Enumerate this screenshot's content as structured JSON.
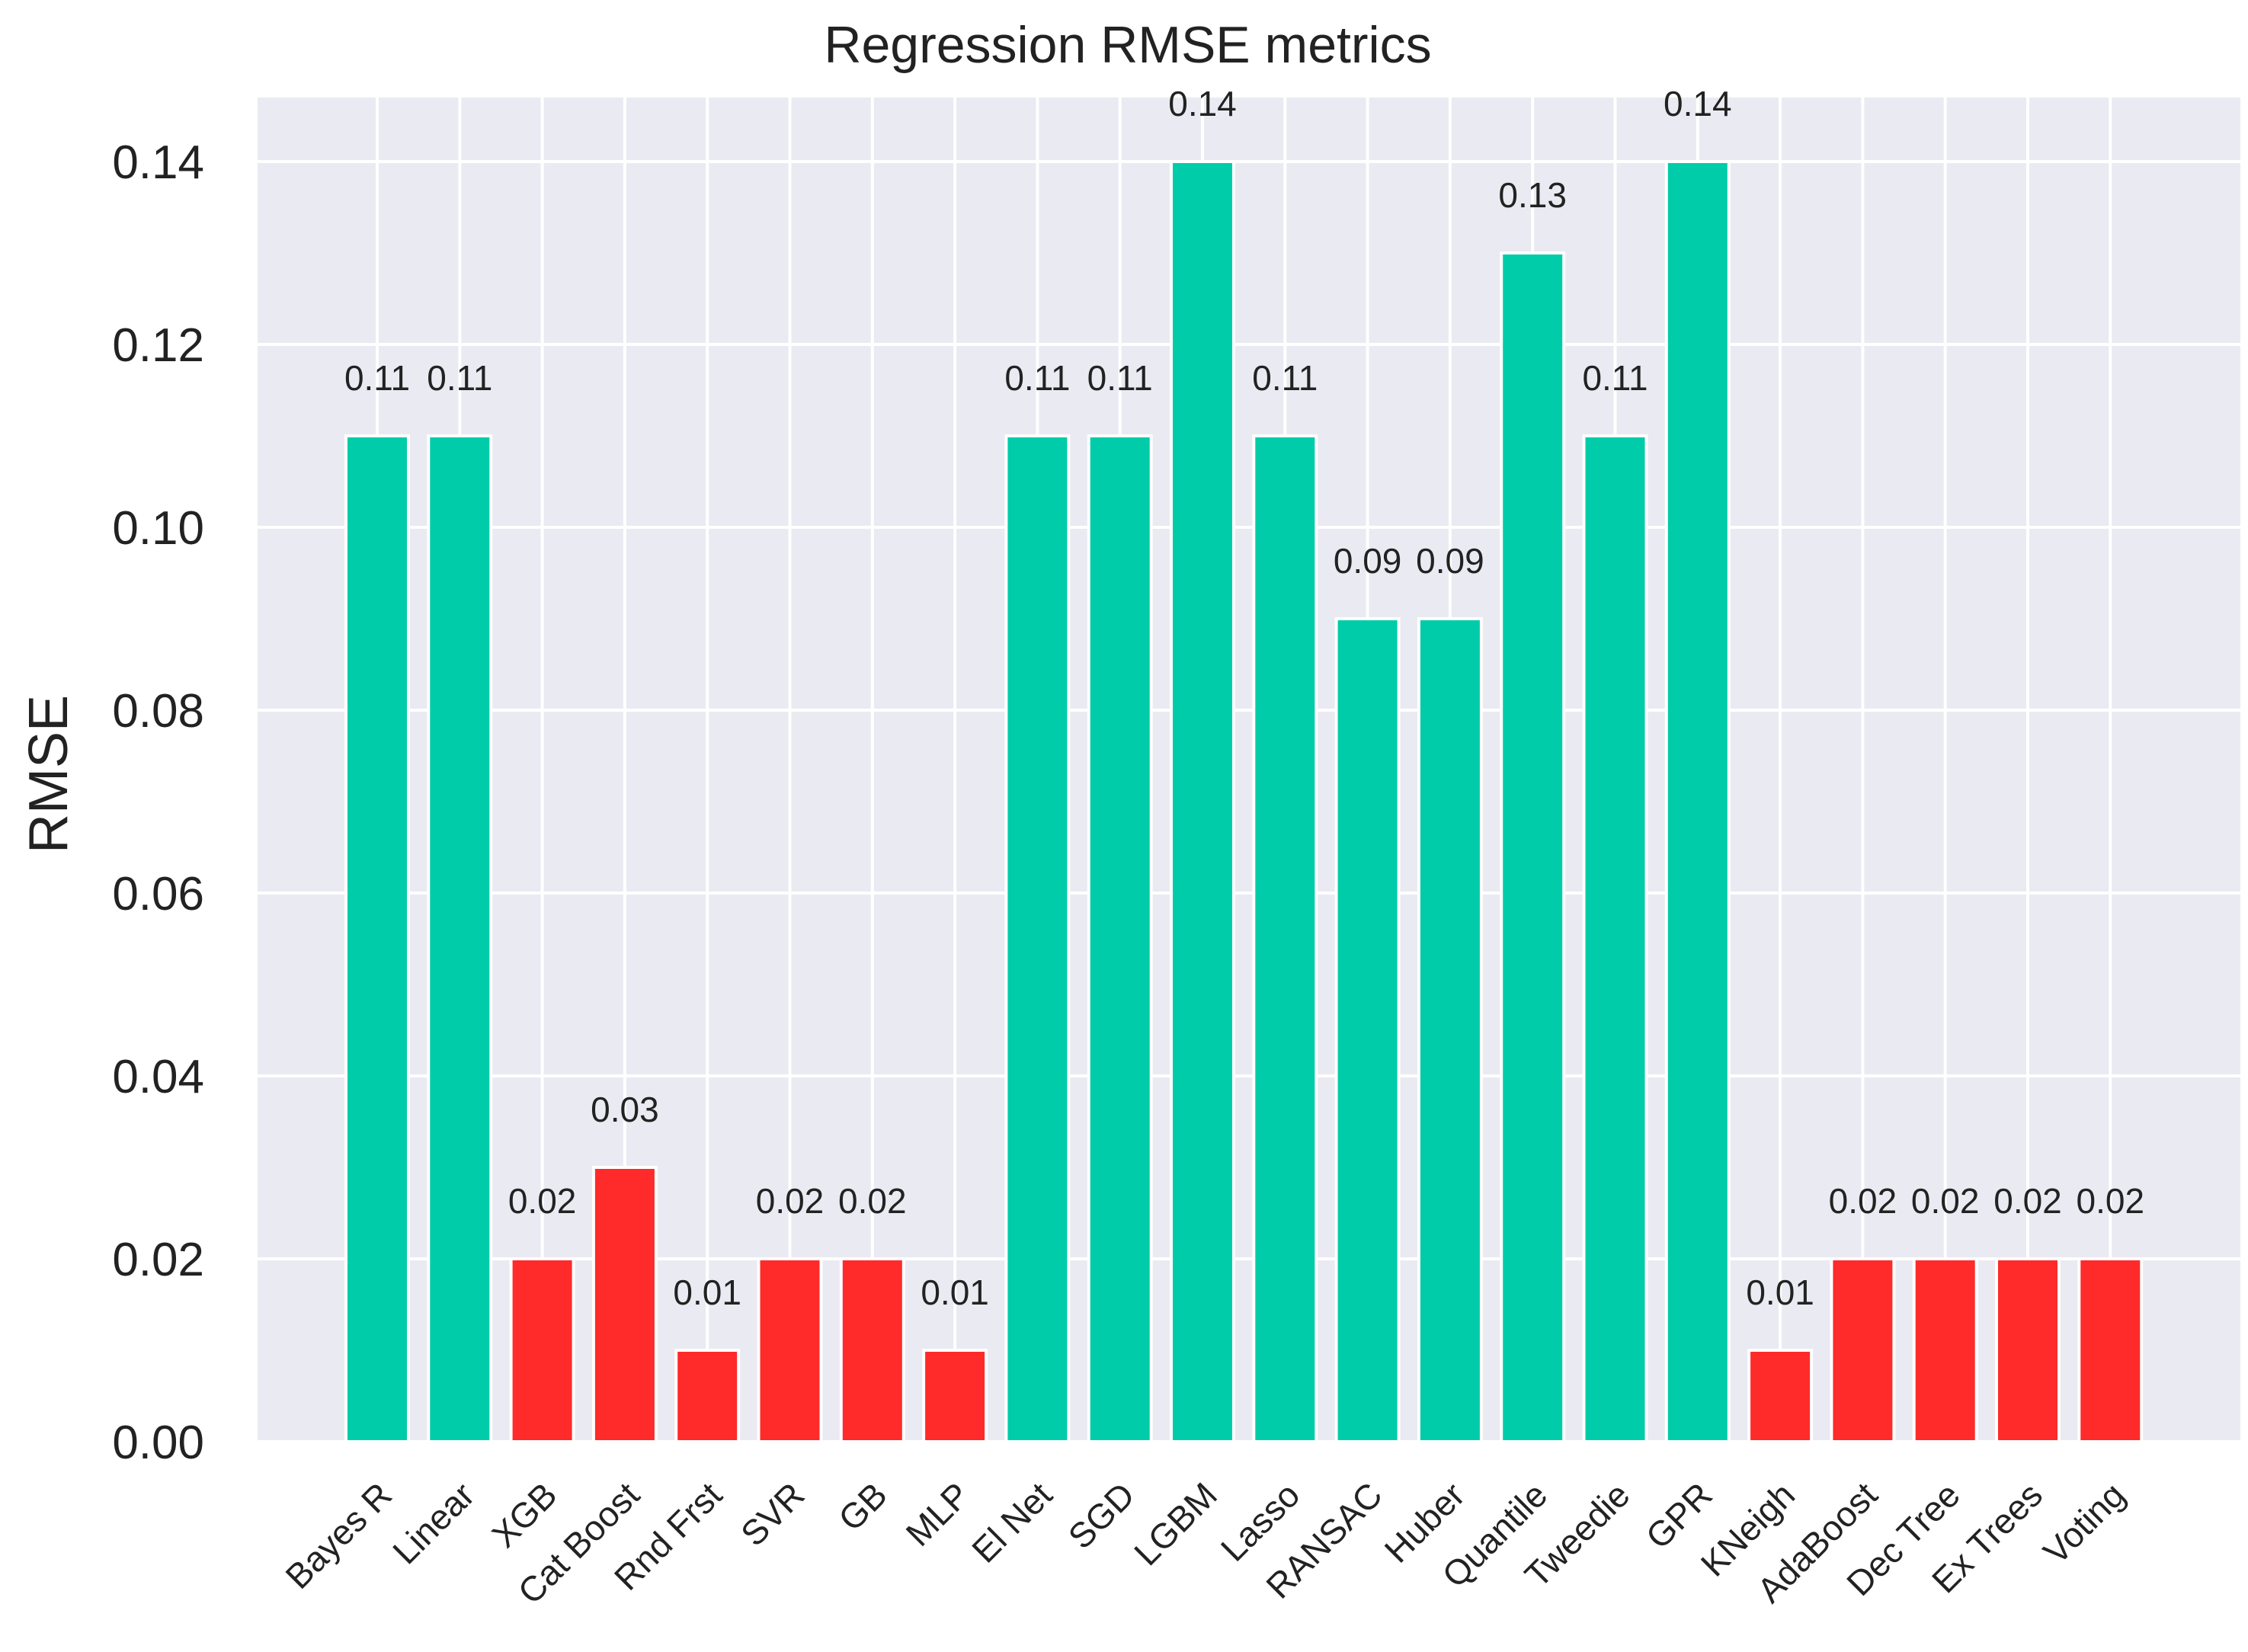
{
  "chart_data": {
    "type": "bar",
    "title": "Regression RMSE metrics",
    "xlabel": "",
    "ylabel": "RMSE",
    "ylim": [
      0,
      0.147
    ],
    "yticks": [
      "0.00",
      "0.02",
      "0.04",
      "0.06",
      "0.08",
      "0.10",
      "0.12",
      "0.14"
    ],
    "ytick_values": [
      0,
      0.02,
      0.04,
      0.06,
      0.08,
      0.1,
      0.12,
      0.14
    ],
    "grid": true,
    "categories": [
      "Bayes R",
      "Linear",
      "XGB",
      "Cat Boost",
      "Rnd Frst",
      "SVR",
      "GB",
      "MLP",
      "El Net",
      "SGD",
      "LGBM",
      "Lasso",
      "RANSAC",
      "Huber",
      "Quantile",
      "Tweedie",
      "GPR",
      "KNeigh",
      "AdaBoost",
      "Dec Tree",
      "Ex Trees",
      "Voting"
    ],
    "values": [
      0.11,
      0.11,
      0.02,
      0.03,
      0.01,
      0.02,
      0.02,
      0.01,
      0.11,
      0.11,
      0.14,
      0.11,
      0.09,
      0.09,
      0.13,
      0.11,
      0.14,
      0.01,
      0.02,
      0.02,
      0.02,
      0.02
    ],
    "data_labels": [
      "0.11",
      "0.11",
      "0.02",
      "0.03",
      "0.01",
      "0.02",
      "0.02",
      "0.01",
      "0.11",
      "0.11",
      "0.14",
      "0.11",
      "0.09",
      "0.09",
      "0.13",
      "0.11",
      "0.14",
      "0.01",
      "0.02",
      "0.02",
      "0.02",
      "0.02"
    ],
    "bar_colors": [
      "#00CCAA",
      "#00CCAA",
      "#FF2A2A",
      "#FF2A2A",
      "#FF2A2A",
      "#FF2A2A",
      "#FF2A2A",
      "#FF2A2A",
      "#00CCAA",
      "#00CCAA",
      "#00CCAA",
      "#00CCAA",
      "#00CCAA",
      "#00CCAA",
      "#00CCAA",
      "#00CCAA",
      "#00CCAA",
      "#FF2A2A",
      "#FF2A2A",
      "#FF2A2A",
      "#FF2A2A",
      "#FF2A2A"
    ],
    "background_color": "#EAEAF2",
    "grid_color": "#FFFFFF"
  }
}
